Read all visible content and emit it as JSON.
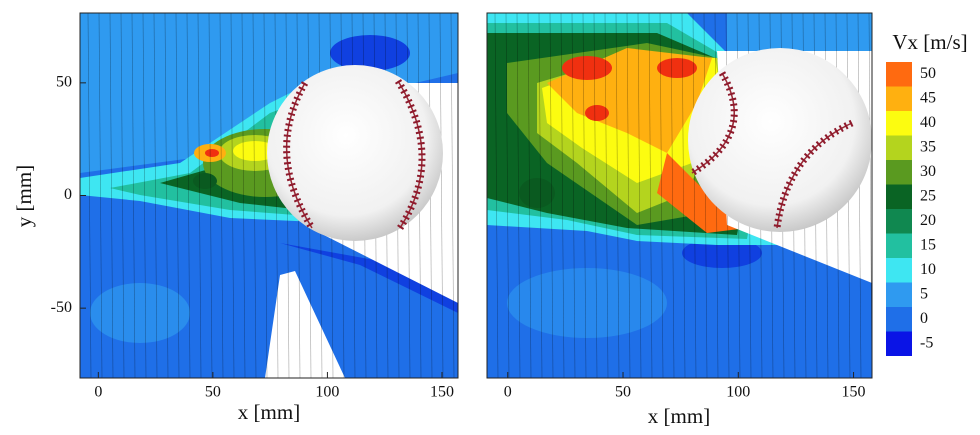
{
  "chart_data": [
    {
      "type": "contour",
      "xlabel": "x [mm]",
      "ylabel": "y [mm]",
      "xlim": [
        -8,
        157
      ],
      "ylim": [
        -81,
        81
      ],
      "xticks": [
        0,
        50,
        100,
        150
      ],
      "yticks": [
        -50,
        0,
        50
      ]
    },
    {
      "type": "contour",
      "xlabel": "x [mm]",
      "xlim": [
        -9,
        158
      ],
      "ylim": [
        -81,
        81
      ],
      "xticks": [
        0,
        50,
        100,
        150
      ],
      "colorbar": {
        "title": "Vx [m/s]",
        "ticks": [
          -5,
          0,
          5,
          10,
          15,
          20,
          25,
          30,
          35,
          40,
          45,
          50
        ],
        "colors": [
          "#0a14e6",
          "#1f6fe8",
          "#2f9af0",
          "#3ee6f2",
          "#22c0a0",
          "#108850",
          "#0a6424",
          "#5a9a20",
          "#b4d41e",
          "#fcfc10",
          "#ffb010",
          "#ff6a10"
        ]
      }
    }
  ]
}
